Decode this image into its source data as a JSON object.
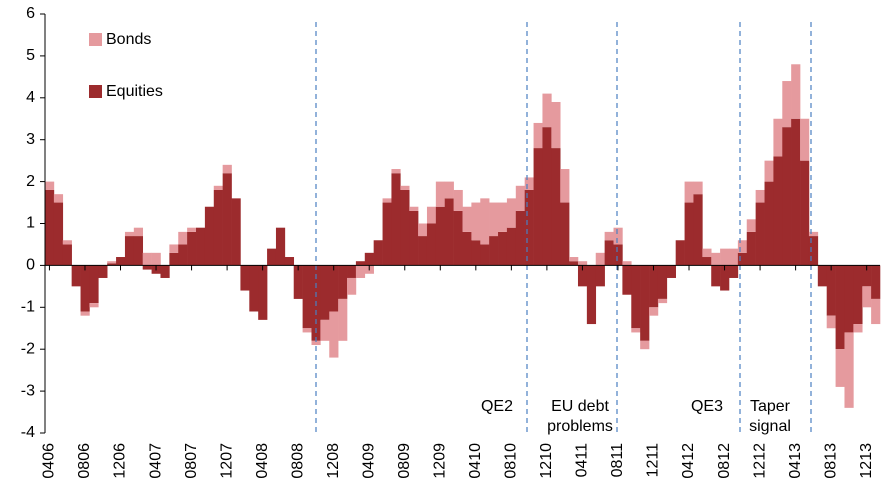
{
  "chart_data": {
    "type": "bar",
    "stacked": true,
    "categories": [
      "0406",
      null,
      null,
      null,
      "0806",
      null,
      null,
      null,
      "1206",
      null,
      null,
      null,
      "0407",
      null,
      null,
      null,
      "0807",
      null,
      null,
      null,
      "1207",
      null,
      null,
      null,
      "0408",
      null,
      null,
      null,
      "0808",
      null,
      null,
      null,
      "1208",
      null,
      null,
      null,
      "0409",
      null,
      null,
      null,
      "0809",
      null,
      null,
      null,
      "1209",
      null,
      null,
      null,
      "0410",
      null,
      null,
      null,
      "0810",
      null,
      null,
      null,
      "1210",
      null,
      null,
      null,
      "0411",
      null,
      null,
      null,
      "0811",
      null,
      null,
      null,
      "1211",
      null,
      null,
      null,
      "0412",
      null,
      null,
      null,
      "0812",
      null,
      null,
      null,
      "1212",
      null,
      null,
      null,
      "0413",
      null,
      null,
      null,
      "0813",
      null,
      null,
      null,
      "1213",
      null
    ],
    "series": [
      {
        "name": "Equities",
        "color": "#9c2b2d",
        "values": [
          1.8,
          1.5,
          0.5,
          -0.5,
          -1.1,
          -0.9,
          -0.3,
          0.05,
          0.2,
          0.7,
          0.7,
          -0.1,
          -0.2,
          -0.3,
          0.3,
          0.5,
          0.8,
          0.9,
          1.4,
          1.8,
          2.2,
          1.6,
          -0.6,
          -1.1,
          -1.3,
          0.4,
          0.9,
          0.2,
          -0.8,
          -1.5,
          -1.8,
          -1.3,
          -1.1,
          -0.8,
          -0.3,
          0.1,
          0.3,
          0.6,
          1.5,
          2.2,
          1.8,
          1.3,
          0.7,
          1.0,
          1.4,
          1.6,
          1.3,
          0.8,
          0.6,
          0.5,
          0.7,
          0.8,
          0.9,
          1.3,
          1.8,
          2.8,
          3.3,
          2.8,
          1.5,
          0.1,
          -0.5,
          -1.4,
          -0.5,
          0.6,
          0.5,
          -0.7,
          -1.5,
          -1.8,
          -1.0,
          -0.8,
          -0.3,
          0.6,
          1.5,
          1.7,
          0.2,
          -0.5,
          -0.6,
          -0.3,
          0.3,
          0.8,
          1.5,
          2.0,
          2.6,
          3.3,
          3.5,
          2.5,
          0.7,
          -0.5,
          -1.2,
          -2.0,
          -1.6,
          -1.4,
          -0.5,
          -0.8
        ]
      },
      {
        "name": "Bonds",
        "color": "#e59a9e",
        "values": [
          0.2,
          0.2,
          0.1,
          0,
          -0.1,
          -0.1,
          0,
          0.05,
          0,
          0.1,
          0.2,
          0.3,
          0.3,
          0,
          0.2,
          0.3,
          0.1,
          0,
          0,
          0.1,
          0.2,
          0,
          0,
          0,
          0,
          0,
          0,
          0,
          0,
          -0.1,
          -0.1,
          -0.5,
          -1.1,
          -1.0,
          -0.4,
          -0.3,
          -0.2,
          0,
          0.1,
          0.1,
          0.1,
          0.1,
          0.3,
          0.4,
          0.6,
          0.4,
          0.5,
          0.6,
          0.9,
          1.1,
          0.8,
          0.7,
          0.7,
          0.6,
          0.3,
          0.6,
          0.8,
          1.1,
          0.8,
          0.1,
          0.1,
          0,
          0.3,
          0.2,
          0.4,
          0.1,
          -0.1,
          -0.2,
          -0.2,
          -0.1,
          0,
          0,
          0.5,
          0.3,
          0.2,
          0.3,
          0.4,
          0.4,
          0.3,
          0.3,
          0.3,
          0.5,
          0.9,
          1.1,
          1.3,
          1.0,
          0.1,
          0,
          -0.3,
          -0.9,
          -1.8,
          -0.2,
          -0.5,
          -0.6
        ]
      }
    ],
    "ylim": [
      -4,
      6
    ],
    "yticks": [
      -4,
      -3,
      -2,
      -1,
      0,
      1,
      2,
      3,
      4,
      5,
      6
    ],
    "annotations": [
      "QE2",
      "EU debt problems",
      "QE3",
      "Taper signal"
    ]
  }
}
